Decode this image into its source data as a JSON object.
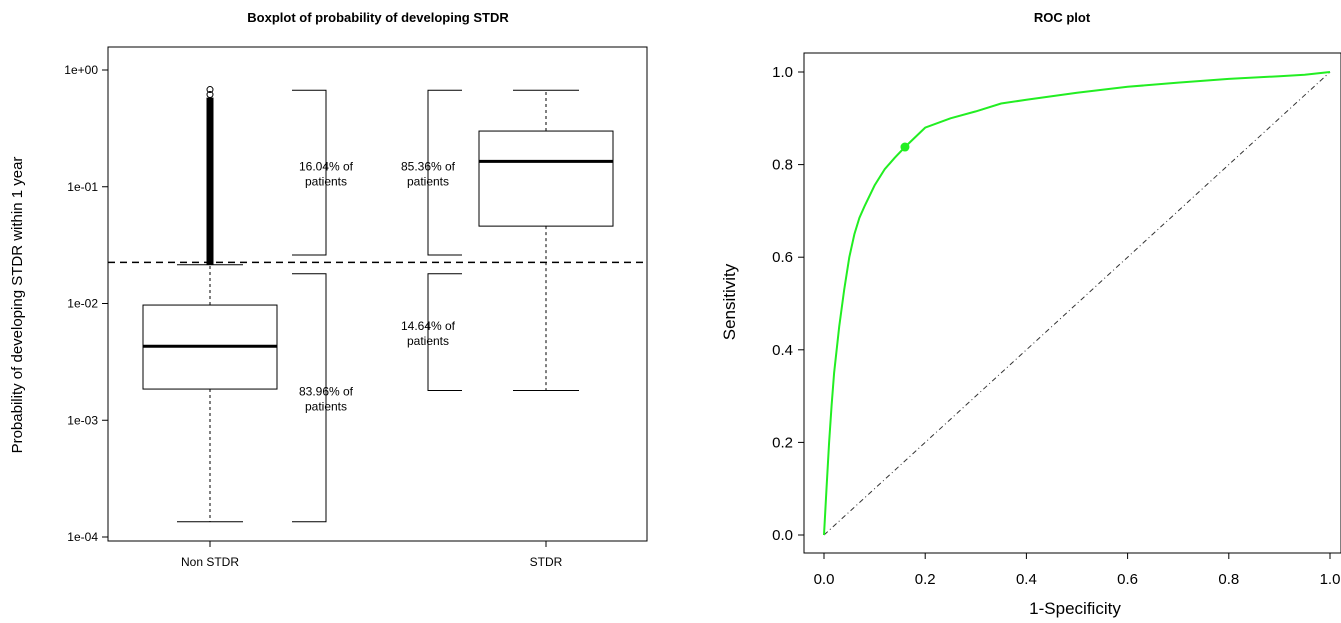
{
  "chart_data": [
    {
      "type": "box",
      "title": "Boxplot of probability of developing STDR",
      "xlabel": "",
      "ylabel": "Probability of developing STDR within 1 year",
      "y_scale": "log",
      "ylim": [
        0.0001,
        1
      ],
      "y_ticks": [
        "1e-04",
        "1e-03",
        "1e-02",
        "1e-01",
        "1e+00"
      ],
      "y_tick_values": [
        0.0001,
        0.001,
        0.01,
        0.1,
        1
      ],
      "categories": [
        "Non STDR",
        "STDR"
      ],
      "boxes": [
        {
          "name": "Non STDR",
          "whisker_low": 0.000135,
          "q1": 0.00185,
          "median": 0.0043,
          "q3": 0.0097,
          "whisker_high": 0.0215,
          "outliers_range": [
            0.0215,
            0.58
          ],
          "max_outlier": 0.68
        },
        {
          "name": "STDR",
          "whisker_low": 0.0018,
          "q1": 0.046,
          "median": 0.165,
          "q3": 0.3,
          "whisker_high": 0.67
        }
      ],
      "threshold": 0.0225,
      "annotations": [
        {
          "line1": "16.04% of",
          "line2": "patients",
          "low": 0.026,
          "high": 0.67
        },
        {
          "line1": "83.96% of",
          "line2": "patients",
          "low": 0.000135,
          "high": 0.018
        },
        {
          "line1": "85.36% of",
          "line2": "patients",
          "low": 0.026,
          "high": 0.67
        },
        {
          "line1": "14.64% of",
          "line2": "patients",
          "low": 0.0018,
          "high": 0.018
        }
      ],
      "grid": false
    },
    {
      "type": "line",
      "title": "ROC plot",
      "xlabel": "1-Specificity",
      "ylabel": "Sensitivity",
      "xlim": [
        0,
        1
      ],
      "ylim": [
        0,
        1
      ],
      "x_ticks": [
        "0.0",
        "0.2",
        "0.4",
        "0.6",
        "0.8",
        "1.0"
      ],
      "y_ticks": [
        "0.0",
        "0.2",
        "0.4",
        "0.6",
        "0.8",
        "1.0"
      ],
      "series": [
        {
          "color": "#22ee22",
          "x": [
            0,
            0.005,
            0.01,
            0.015,
            0.02,
            0.03,
            0.04,
            0.05,
            0.06,
            0.07,
            0.08,
            0.1,
            0.12,
            0.14,
            0.16,
            0.2,
            0.25,
            0.3,
            0.35,
            0.4,
            0.5,
            0.6,
            0.7,
            0.8,
            0.9,
            0.95,
            1
          ],
          "y": [
            0,
            0.1,
            0.2,
            0.28,
            0.35,
            0.45,
            0.53,
            0.6,
            0.65,
            0.685,
            0.71,
            0.755,
            0.79,
            0.815,
            0.838,
            0.88,
            0.9,
            0.915,
            0.932,
            0.94,
            0.955,
            0.968,
            0.977,
            0.985,
            0.991,
            0.994,
            1
          ]
        }
      ],
      "reference_line": {
        "x": [
          0,
          1
        ],
        "y": [
          0,
          1
        ]
      },
      "cutoff_point": {
        "x": 0.16,
        "y": 0.838
      },
      "grid": false
    }
  ]
}
